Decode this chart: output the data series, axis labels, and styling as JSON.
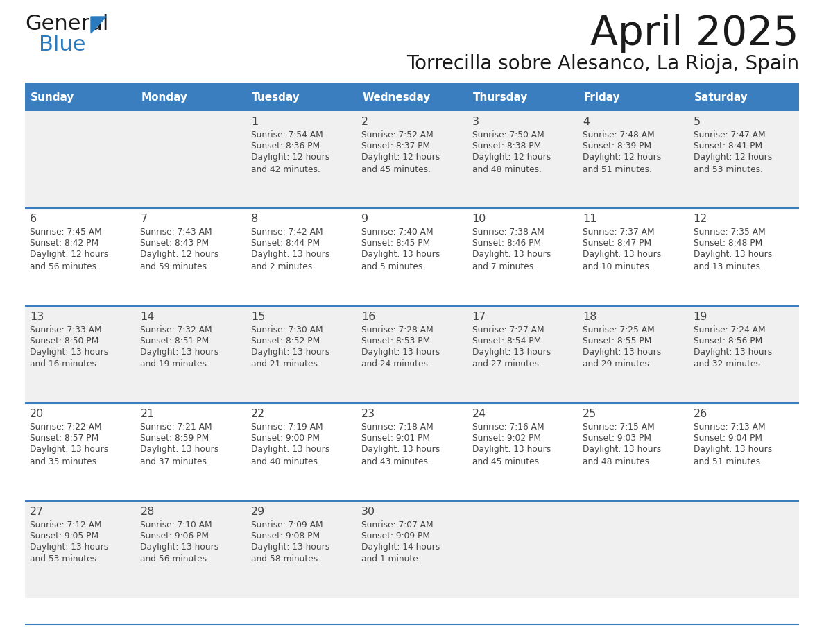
{
  "title": "April 2025",
  "subtitle": "Torrecilla sobre Alesanco, La Rioja, Spain",
  "days_of_week": [
    "Sunday",
    "Monday",
    "Tuesday",
    "Wednesday",
    "Thursday",
    "Friday",
    "Saturday"
  ],
  "header_bg": "#3a7ebf",
  "header_text": "#ffffff",
  "cell_bg_odd": "#f0f0f0",
  "cell_bg_even": "#ffffff",
  "divider_color": "#3a7ebf",
  "text_color": "#444444",
  "title_color": "#1a1a1a",
  "logo_black": "#1a1a1a",
  "logo_blue": "#2a7abf",
  "calendar": [
    [
      {
        "day": "",
        "sunrise": "",
        "sunset": "",
        "daylight": ""
      },
      {
        "day": "",
        "sunrise": "",
        "sunset": "",
        "daylight": ""
      },
      {
        "day": "1",
        "sunrise": "Sunrise: 7:54 AM",
        "sunset": "Sunset: 8:36 PM",
        "daylight": "Daylight: 12 hours\nand 42 minutes."
      },
      {
        "day": "2",
        "sunrise": "Sunrise: 7:52 AM",
        "sunset": "Sunset: 8:37 PM",
        "daylight": "Daylight: 12 hours\nand 45 minutes."
      },
      {
        "day": "3",
        "sunrise": "Sunrise: 7:50 AM",
        "sunset": "Sunset: 8:38 PM",
        "daylight": "Daylight: 12 hours\nand 48 minutes."
      },
      {
        "day": "4",
        "sunrise": "Sunrise: 7:48 AM",
        "sunset": "Sunset: 8:39 PM",
        "daylight": "Daylight: 12 hours\nand 51 minutes."
      },
      {
        "day": "5",
        "sunrise": "Sunrise: 7:47 AM",
        "sunset": "Sunset: 8:41 PM",
        "daylight": "Daylight: 12 hours\nand 53 minutes."
      }
    ],
    [
      {
        "day": "6",
        "sunrise": "Sunrise: 7:45 AM",
        "sunset": "Sunset: 8:42 PM",
        "daylight": "Daylight: 12 hours\nand 56 minutes."
      },
      {
        "day": "7",
        "sunrise": "Sunrise: 7:43 AM",
        "sunset": "Sunset: 8:43 PM",
        "daylight": "Daylight: 12 hours\nand 59 minutes."
      },
      {
        "day": "8",
        "sunrise": "Sunrise: 7:42 AM",
        "sunset": "Sunset: 8:44 PM",
        "daylight": "Daylight: 13 hours\nand 2 minutes."
      },
      {
        "day": "9",
        "sunrise": "Sunrise: 7:40 AM",
        "sunset": "Sunset: 8:45 PM",
        "daylight": "Daylight: 13 hours\nand 5 minutes."
      },
      {
        "day": "10",
        "sunrise": "Sunrise: 7:38 AM",
        "sunset": "Sunset: 8:46 PM",
        "daylight": "Daylight: 13 hours\nand 7 minutes."
      },
      {
        "day": "11",
        "sunrise": "Sunrise: 7:37 AM",
        "sunset": "Sunset: 8:47 PM",
        "daylight": "Daylight: 13 hours\nand 10 minutes."
      },
      {
        "day": "12",
        "sunrise": "Sunrise: 7:35 AM",
        "sunset": "Sunset: 8:48 PM",
        "daylight": "Daylight: 13 hours\nand 13 minutes."
      }
    ],
    [
      {
        "day": "13",
        "sunrise": "Sunrise: 7:33 AM",
        "sunset": "Sunset: 8:50 PM",
        "daylight": "Daylight: 13 hours\nand 16 minutes."
      },
      {
        "day": "14",
        "sunrise": "Sunrise: 7:32 AM",
        "sunset": "Sunset: 8:51 PM",
        "daylight": "Daylight: 13 hours\nand 19 minutes."
      },
      {
        "day": "15",
        "sunrise": "Sunrise: 7:30 AM",
        "sunset": "Sunset: 8:52 PM",
        "daylight": "Daylight: 13 hours\nand 21 minutes."
      },
      {
        "day": "16",
        "sunrise": "Sunrise: 7:28 AM",
        "sunset": "Sunset: 8:53 PM",
        "daylight": "Daylight: 13 hours\nand 24 minutes."
      },
      {
        "day": "17",
        "sunrise": "Sunrise: 7:27 AM",
        "sunset": "Sunset: 8:54 PM",
        "daylight": "Daylight: 13 hours\nand 27 minutes."
      },
      {
        "day": "18",
        "sunrise": "Sunrise: 7:25 AM",
        "sunset": "Sunset: 8:55 PM",
        "daylight": "Daylight: 13 hours\nand 29 minutes."
      },
      {
        "day": "19",
        "sunrise": "Sunrise: 7:24 AM",
        "sunset": "Sunset: 8:56 PM",
        "daylight": "Daylight: 13 hours\nand 32 minutes."
      }
    ],
    [
      {
        "day": "20",
        "sunrise": "Sunrise: 7:22 AM",
        "sunset": "Sunset: 8:57 PM",
        "daylight": "Daylight: 13 hours\nand 35 minutes."
      },
      {
        "day": "21",
        "sunrise": "Sunrise: 7:21 AM",
        "sunset": "Sunset: 8:59 PM",
        "daylight": "Daylight: 13 hours\nand 37 minutes."
      },
      {
        "day": "22",
        "sunrise": "Sunrise: 7:19 AM",
        "sunset": "Sunset: 9:00 PM",
        "daylight": "Daylight: 13 hours\nand 40 minutes."
      },
      {
        "day": "23",
        "sunrise": "Sunrise: 7:18 AM",
        "sunset": "Sunset: 9:01 PM",
        "daylight": "Daylight: 13 hours\nand 43 minutes."
      },
      {
        "day": "24",
        "sunrise": "Sunrise: 7:16 AM",
        "sunset": "Sunset: 9:02 PM",
        "daylight": "Daylight: 13 hours\nand 45 minutes."
      },
      {
        "day": "25",
        "sunrise": "Sunrise: 7:15 AM",
        "sunset": "Sunset: 9:03 PM",
        "daylight": "Daylight: 13 hours\nand 48 minutes."
      },
      {
        "day": "26",
        "sunrise": "Sunrise: 7:13 AM",
        "sunset": "Sunset: 9:04 PM",
        "daylight": "Daylight: 13 hours\nand 51 minutes."
      }
    ],
    [
      {
        "day": "27",
        "sunrise": "Sunrise: 7:12 AM",
        "sunset": "Sunset: 9:05 PM",
        "daylight": "Daylight: 13 hours\nand 53 minutes."
      },
      {
        "day": "28",
        "sunrise": "Sunrise: 7:10 AM",
        "sunset": "Sunset: 9:06 PM",
        "daylight": "Daylight: 13 hours\nand 56 minutes."
      },
      {
        "day": "29",
        "sunrise": "Sunrise: 7:09 AM",
        "sunset": "Sunset: 9:08 PM",
        "daylight": "Daylight: 13 hours\nand 58 minutes."
      },
      {
        "day": "30",
        "sunrise": "Sunrise: 7:07 AM",
        "sunset": "Sunset: 9:09 PM",
        "daylight": "Daylight: 14 hours\nand 1 minute."
      },
      {
        "day": "",
        "sunrise": "",
        "sunset": "",
        "daylight": ""
      },
      {
        "day": "",
        "sunrise": "",
        "sunset": "",
        "daylight": ""
      },
      {
        "day": "",
        "sunrise": "",
        "sunset": "",
        "daylight": ""
      }
    ]
  ]
}
